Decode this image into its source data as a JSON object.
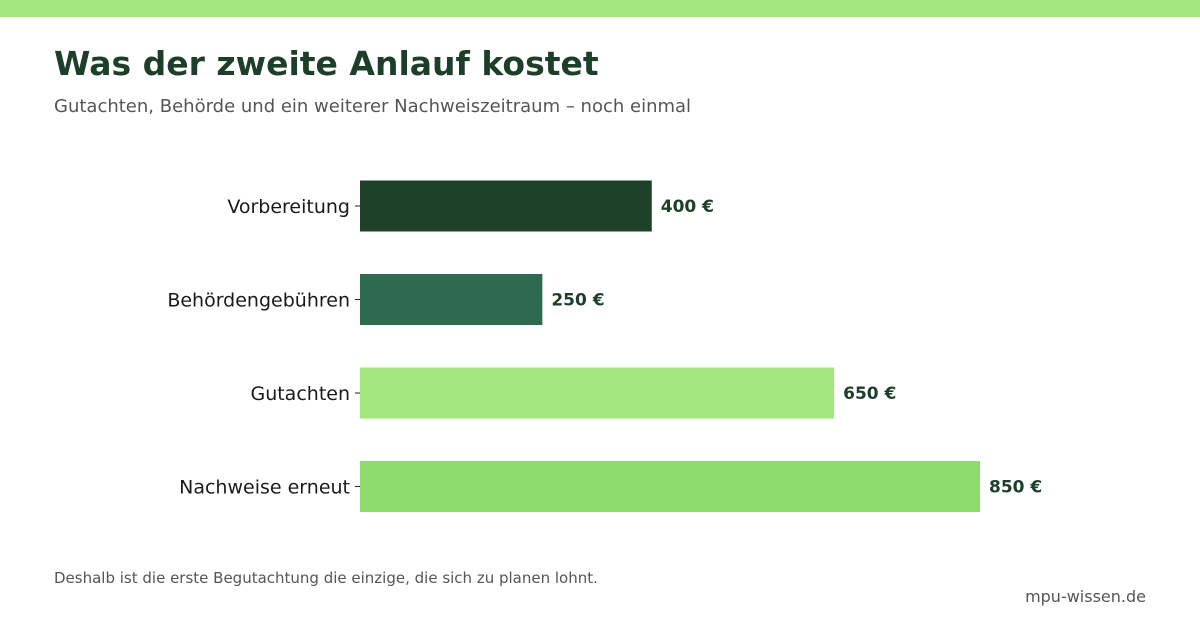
{
  "title": "Was der zweite Anlauf kostet",
  "subtitle": "Gutachten, Behörde und ein weiterer Nachweiszeitraum – noch einmal",
  "footnote": "Deshalb ist die erste Begutachtung die einzige, die sich zu planen lohnt.",
  "source": "mpu-wissen.de",
  "colors": {
    "accent": "#a2e67e",
    "title": "#1d3f2a",
    "value_label": "#1d3f2a"
  },
  "chart_data": {
    "type": "bar",
    "orientation": "horizontal",
    "categories": [
      "Vorbereitung",
      "Behördengebühren",
      "Gutachten",
      "Nachweise erneut"
    ],
    "values": [
      400,
      250,
      650,
      850
    ],
    "value_labels": [
      "400 €",
      "250 €",
      "650 €",
      "850 €"
    ],
    "bar_colors": [
      "#1d4129",
      "#2d6a4f",
      "#a2e67e",
      "#8cdb6c"
    ],
    "xlim": [
      0,
      850
    ],
    "grid": false,
    "legend": "none"
  }
}
